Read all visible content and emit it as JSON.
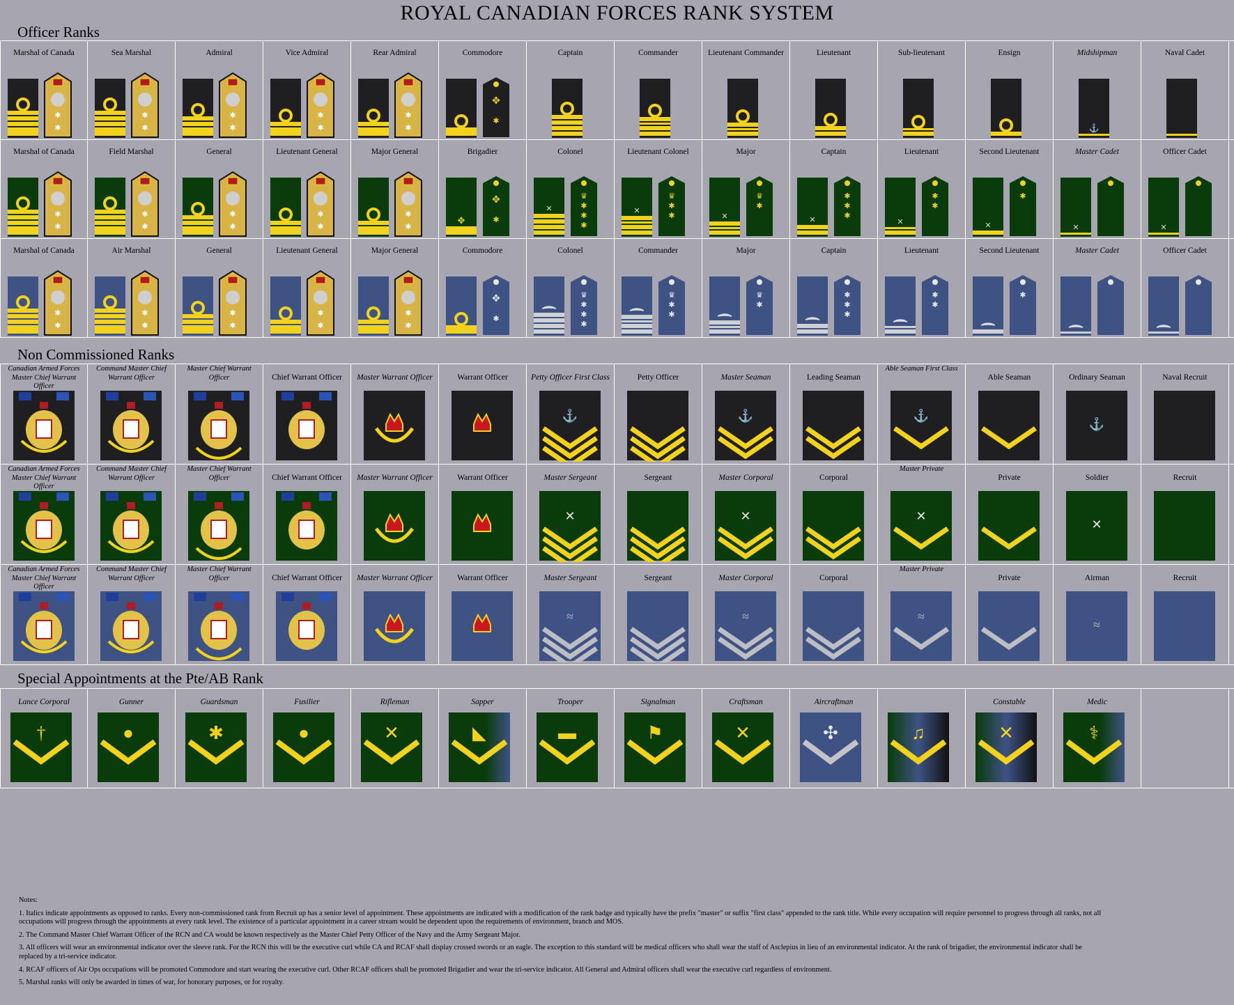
{
  "title": "ROYAL CANADIAN FORCES RANK SYSTEM",
  "colors": {
    "background": "#a7a5af",
    "navy": "#1f1f22",
    "army": "#0a3b0a",
    "air": "#3e5384",
    "gold": "#f2d21c",
    "silver": "#cfd0d3"
  },
  "sections": {
    "officer": "Officer Ranks",
    "nc": "Non Commissioned Ranks",
    "special": "Special Appointments at the Pte/AB Rank"
  },
  "officer_rows": [
    {
      "branch": "navy",
      "ranks": [
        {
          "label": "Marshal of Canada",
          "italic": false
        },
        {
          "label": "Sea Marshal",
          "italic": false
        },
        {
          "label": "Admiral",
          "italic": false
        },
        {
          "label": "Vice Admiral",
          "italic": false
        },
        {
          "label": "Rear Admiral",
          "italic": false
        },
        {
          "label": "Commodore",
          "italic": false
        },
        {
          "label": "Captain",
          "italic": false
        },
        {
          "label": "Commander",
          "italic": false
        },
        {
          "label": "Lieutenant Commander",
          "italic": false
        },
        {
          "label": "Lieutenant",
          "italic": false
        },
        {
          "label": "Sub-lieutenant",
          "italic": false
        },
        {
          "label": "Ensign",
          "italic": false
        },
        {
          "label": "Midshipman",
          "italic": true
        },
        {
          "label": "Naval Cadet",
          "italic": false
        }
      ]
    },
    {
      "branch": "army",
      "ranks": [
        {
          "label": "Marshal of Canada",
          "italic": false
        },
        {
          "label": "Field Marshal",
          "italic": false
        },
        {
          "label": "General",
          "italic": false
        },
        {
          "label": "Lieutenant General",
          "italic": false
        },
        {
          "label": "Major General",
          "italic": false
        },
        {
          "label": "Brigadier",
          "italic": false
        },
        {
          "label": "Colonel",
          "italic": false
        },
        {
          "label": "Lieutenant Colonel",
          "italic": false
        },
        {
          "label": "Major",
          "italic": false
        },
        {
          "label": "Captain",
          "italic": false
        },
        {
          "label": "Lieutenant",
          "italic": false
        },
        {
          "label": "Second Lieutenant",
          "italic": false
        },
        {
          "label": "Master Cadet",
          "italic": true
        },
        {
          "label": "Officer Cadet",
          "italic": false
        }
      ]
    },
    {
      "branch": "air",
      "ranks": [
        {
          "label": "Marshal of Canada",
          "italic": false
        },
        {
          "label": "Air Marshal",
          "italic": false
        },
        {
          "label": "General",
          "italic": false
        },
        {
          "label": "Lieutenant General",
          "italic": false
        },
        {
          "label": "Major General",
          "italic": false
        },
        {
          "label": "Commodore",
          "italic": false
        },
        {
          "label": "Colonel",
          "italic": false
        },
        {
          "label": "Commander",
          "italic": false
        },
        {
          "label": "Major",
          "italic": false
        },
        {
          "label": "Captain",
          "italic": false
        },
        {
          "label": "Lieutenant",
          "italic": false
        },
        {
          "label": "Second Lieutenant",
          "italic": false
        },
        {
          "label": "Master Cadet",
          "italic": true
        },
        {
          "label": "Officer Cadet",
          "italic": false
        }
      ]
    }
  ],
  "nc_rows": [
    {
      "branch": "navy",
      "ranks": [
        {
          "label": "Canadian Armed Forces Master Chief Warrant Officer",
          "italic": true
        },
        {
          "label": "Command Master Chief Warrant Officer",
          "italic": true
        },
        {
          "label": "Master Chief Warrant Officer",
          "italic": true
        },
        {
          "label": "Chief Warrant Officer",
          "italic": false
        },
        {
          "label": "Master Warrant Officer",
          "italic": true
        },
        {
          "label": "Warrant Officer",
          "italic": false
        },
        {
          "label": "Petty Officer First Class",
          "italic": true
        },
        {
          "label": "Petty Officer",
          "italic": false
        },
        {
          "label": "Master Seaman",
          "italic": true
        },
        {
          "label": "Leading Seaman",
          "italic": false
        },
        {
          "label": "Able Seaman First Class",
          "italic": true
        },
        {
          "label": "Able Seaman",
          "italic": false
        },
        {
          "label": "Ordinary Seaman",
          "italic": false
        },
        {
          "label": "Naval Recruit",
          "italic": false
        }
      ]
    },
    {
      "branch": "army",
      "ranks": [
        {
          "label": "Canadian Armed Forces Master Chief Warrant Officer",
          "italic": true
        },
        {
          "label": "Command Master Chief Warrant Officer",
          "italic": true
        },
        {
          "label": "Master Chief Warrant Officer",
          "italic": true
        },
        {
          "label": "Chief Warrant Officer",
          "italic": false
        },
        {
          "label": "Master Warrant Officer",
          "italic": true
        },
        {
          "label": "Warrant Officer",
          "italic": false
        },
        {
          "label": "Master Sergeant",
          "italic": true
        },
        {
          "label": "Sergeant",
          "italic": false
        },
        {
          "label": "Master Corporal",
          "italic": true
        },
        {
          "label": "Corporal",
          "italic": false
        },
        {
          "label": "Master Private",
          "italic": true
        },
        {
          "label": "Private",
          "italic": false
        },
        {
          "label": "Soldier",
          "italic": false
        },
        {
          "label": "Recruit",
          "italic": false
        }
      ]
    },
    {
      "branch": "air",
      "ranks": [
        {
          "label": "Canadian Armed Forces Master Chief Warrant Officer",
          "italic": true
        },
        {
          "label": "Command Master Chief Warrant Officer",
          "italic": true
        },
        {
          "label": "Master Chief Warrant Officer",
          "italic": true
        },
        {
          "label": "Chief Warrant Officer",
          "italic": false
        },
        {
          "label": "Master Warrant Officer",
          "italic": true
        },
        {
          "label": "Warrant Officer",
          "italic": false
        },
        {
          "label": "Master Sergeant",
          "italic": true
        },
        {
          "label": "Sergeant",
          "italic": false
        },
        {
          "label": "Master Corporal",
          "italic": true
        },
        {
          "label": "Corporal",
          "italic": false
        },
        {
          "label": "Master Private",
          "italic": true
        },
        {
          "label": "Private",
          "italic": false
        },
        {
          "label": "Airman",
          "italic": false
        },
        {
          "label": "Recruit",
          "italic": false
        }
      ]
    }
  ],
  "special": [
    {
      "label": "Lance Corporal",
      "branch": "army",
      "icon": "dagger-icon"
    },
    {
      "label": "Gunner",
      "branch": "army",
      "icon": "grenade-icon"
    },
    {
      "label": "Guardsman",
      "branch": "army",
      "icon": "maple-leaf-icon"
    },
    {
      "label": "Fusilier",
      "branch": "army",
      "icon": "flaming-grenade-icon"
    },
    {
      "label": "Rifleman",
      "branch": "army",
      "icon": "crossed-rifles-icon"
    },
    {
      "label": "Sapper",
      "branch": "army-navy",
      "icon": "beaver-icon"
    },
    {
      "label": "Trooper",
      "branch": "army",
      "icon": "tank-icon"
    },
    {
      "label": "Signalman",
      "branch": "army",
      "icon": "signal-flags-icon"
    },
    {
      "label": "Craftsman",
      "branch": "army",
      "icon": "crossed-wrenches-icon"
    },
    {
      "label": "Aircraftman",
      "branch": "air",
      "icon": "propeller-icon"
    },
    {
      "label": "",
      "branch": "tri",
      "icon": "lyre-icon"
    },
    {
      "label": "Constable",
      "branch": "tri",
      "icon": "crossed-pistols-icon"
    },
    {
      "label": "Medic",
      "branch": "army-navy",
      "icon": "asclepius-staff-icon"
    }
  ],
  "notes": {
    "heading": "Notes:",
    "items": [
      "1. Italics indicate appointments as opposed to ranks. Every non-commissioned rank from Recruit up has a senior level of appointment. These appointments are indicated with a modification of the rank badge and typically have the prefix \"master\" or suffix \"first class\" appended to the rank title. While every occupation will require personnel to progress through all ranks, not all occupations will progress through the appointments at every rank level. The existence of a particular appointment in a career stream would be dependent upon the requirements of environment, branch and MOS.",
      "2. The Command Master Chief Warrant Officer of the RCN and CA would be known respectively as the Master Chief Petty Officer of the Navy and the Army Sergeant Major.",
      "3. All officers will wear an environmental indicator over the sleeve rank. For the RCN this will be the executive curl while CA and RCAF shall display crossed swords or an eagle. The exception to this standard will be medical officers who shall wear the staff of Asclepius in lieu of an environmental indicator. At the rank of brigadier, the environmental indicator shall be replaced by a tri-service indicator.",
      "4. RCAF officers of Air Ops occupations will be promoted Commodore and start wearing the executive curl. Other RCAF officers shall be promoted Brigadier and wear the tri-service indicator. All General and Admiral officers shall wear the executive curl regardless of environment.",
      "5. Marshal ranks will only be awarded in times of war, for honorary purposes, or for royalty."
    ]
  }
}
